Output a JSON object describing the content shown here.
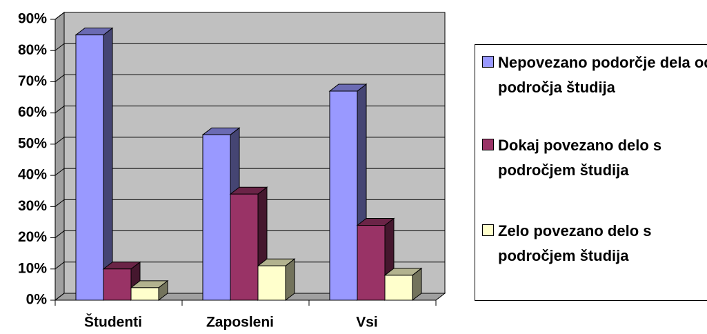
{
  "chart_data": {
    "type": "bar3d",
    "categories": [
      "Študenti",
      "Zaposleni",
      "Vsi"
    ],
    "series": [
      {
        "name": "Nepovezano podorčje dela od področja študija",
        "color": "#9999ff",
        "values": [
          85,
          53,
          67
        ]
      },
      {
        "name": "Dokaj povezano delo s področjem študija",
        "color": "#993366",
        "values": [
          10,
          34,
          24
        ]
      },
      {
        "name": "Zelo povezano delo s področjem študija",
        "color": "#ffffcc",
        "values": [
          4,
          11,
          8
        ]
      }
    ],
    "ylim": [
      0,
      90
    ],
    "yticks": [
      {
        "value": 0,
        "label": "0%"
      },
      {
        "value": 10,
        "label": "10%"
      },
      {
        "value": 20,
        "label": "20%"
      },
      {
        "value": 30,
        "label": "30%"
      },
      {
        "value": 40,
        "label": "40%"
      },
      {
        "value": 50,
        "label": "50%"
      },
      {
        "value": 60,
        "label": "60%"
      },
      {
        "value": 70,
        "label": "70%"
      },
      {
        "value": 80,
        "label": "80%"
      },
      {
        "value": 90,
        "label": "90%"
      }
    ],
    "grid": true,
    "legend": "right"
  }
}
